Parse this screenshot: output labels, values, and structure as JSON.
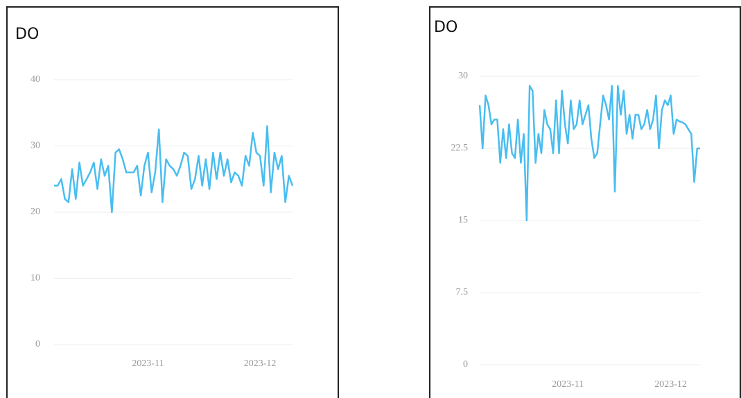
{
  "chart_data": [
    {
      "type": "line",
      "title": "DO",
      "color": "#49bdf0",
      "categories": [
        null,
        null,
        null,
        null,
        null,
        null,
        null,
        null,
        null,
        null,
        null,
        null,
        null,
        null,
        null,
        null,
        null,
        null,
        null,
        null,
        null,
        null,
        null,
        null,
        null,
        null,
        "2023-11",
        null,
        null,
        null,
        null,
        null,
        null,
        null,
        null,
        null,
        null,
        null,
        null,
        null,
        null,
        null,
        null,
        null,
        null,
        null,
        null,
        null,
        null,
        null,
        null,
        null,
        null,
        null,
        null,
        null,
        null,
        "2023-12",
        null,
        null,
        null,
        null,
        null,
        null,
        null,
        null,
        null
      ],
      "values": [
        24,
        24,
        25,
        22,
        21.5,
        26.5,
        22,
        27.5,
        24,
        25,
        26,
        27.5,
        23.5,
        28,
        25.5,
        27,
        20,
        29,
        29.5,
        28,
        26,
        26,
        26,
        27,
        22.5,
        27,
        29,
        23,
        26,
        32.5,
        21.5,
        28,
        27,
        26.5,
        25.5,
        27,
        29,
        28.5,
        23.5,
        25,
        28.5,
        24,
        28,
        23.5,
        29,
        25,
        29,
        25.5,
        28,
        24.5,
        26,
        25.5,
        24,
        28.5,
        27,
        32,
        29,
        28.5,
        24,
        33,
        23,
        29,
        26.5,
        28.5,
        21.5,
        25.5,
        24
      ],
      "ylim": [
        0,
        40
      ],
      "yticks": [
        0,
        10,
        20,
        30,
        40
      ],
      "grid": true
    },
    {
      "type": "line",
      "title": "DO",
      "color": "#49bdf0",
      "categories": [
        null,
        null,
        null,
        null,
        null,
        null,
        null,
        null,
        null,
        null,
        null,
        null,
        null,
        null,
        null,
        null,
        null,
        null,
        null,
        null,
        null,
        null,
        null,
        null,
        null,
        null,
        null,
        null,
        null,
        null,
        "2023-11",
        null,
        null,
        null,
        null,
        null,
        null,
        null,
        null,
        null,
        null,
        null,
        null,
        null,
        null,
        null,
        null,
        null,
        null,
        null,
        null,
        null,
        null,
        null,
        null,
        null,
        null,
        null,
        null,
        null,
        null,
        null,
        null,
        null,
        null,
        "2023-12",
        null,
        null,
        null,
        null,
        null,
        null,
        null,
        null,
        null,
        null
      ],
      "values": [
        27,
        22.5,
        28,
        27,
        25,
        25.5,
        25.5,
        21,
        24.5,
        21.5,
        25,
        22,
        21.5,
        25.5,
        21,
        24,
        15,
        29,
        28.5,
        21,
        24,
        22,
        26.5,
        25,
        24.5,
        22,
        27.5,
        22,
        28.5,
        25,
        23,
        27.5,
        24.5,
        25,
        27.5,
        25,
        26,
        27,
        23.5,
        21.5,
        22,
        25,
        28,
        27,
        25.5,
        29,
        18,
        29,
        26,
        28.5,
        24,
        26,
        23.5,
        26,
        26,
        24.5,
        25,
        26.5,
        24.5,
        25.5,
        28,
        22.5,
        26.5,
        27.5,
        27,
        28,
        24,
        25.5,
        25.3,
        25.2,
        25,
        24.5,
        24,
        19,
        22.5,
        22.5
      ],
      "ylim": [
        0,
        30
      ],
      "yticks": [
        0,
        7.5,
        15,
        22.5,
        30
      ],
      "grid": true
    }
  ]
}
